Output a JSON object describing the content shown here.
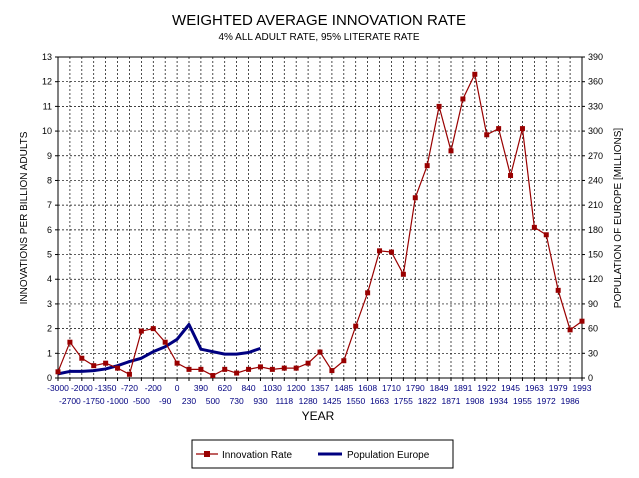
{
  "chart_data": {
    "type": "line",
    "title": "WEIGHTED AVERAGE INNOVATION RATE",
    "subtitle": "4% ALL ADULT RATE, 95% LITERATE RATE",
    "xlabel": "YEAR",
    "ylabel_left": "INNOVATIONS PER BILLION ADULTS",
    "ylabel_right": "POPULATION OF EUROPE [MILLIONS]",
    "ylim_left": [
      0,
      13
    ],
    "ylim_right": [
      0,
      390
    ],
    "yticks_left": [
      "0",
      "1",
      "2",
      "3",
      "4",
      "5",
      "6",
      "7",
      "8",
      "9",
      "10",
      "11",
      "12",
      "13"
    ],
    "yticks_right": [
      "0",
      "30",
      "60",
      "90",
      "120",
      "150",
      "180",
      "210",
      "240",
      "270",
      "300",
      "330",
      "360",
      "390"
    ],
    "categories": [
      "-3000",
      "-2700",
      "-2000",
      "-1750",
      "-1350",
      "-1000",
      "-720",
      "-500",
      "-200",
      "-90",
      "0",
      "230",
      "390",
      "500",
      "620",
      "730",
      "840",
      "930",
      "1030",
      "1118",
      "1200",
      "1280",
      "1357",
      "1425",
      "1485",
      "1550",
      "1608",
      "1663",
      "1710",
      "1755",
      "1790",
      "1822",
      "1849",
      "1871",
      "1891",
      "1908",
      "1922",
      "1934",
      "1945",
      "1955",
      "1963",
      "1972",
      "1979",
      "1986",
      "1993"
    ],
    "series": [
      {
        "name": "Innovation Rate",
        "color": "#990000",
        "values": [
          0.25,
          1.45,
          0.8,
          0.5,
          0.6,
          0.4,
          0.15,
          1.9,
          2.0,
          1.45,
          0.6,
          0.35,
          0.35,
          0.1,
          0.35,
          0.2,
          0.35,
          0.45,
          0.35,
          0.4,
          0.4,
          0.6,
          1.05,
          0.3,
          0.7,
          2.1,
          3.45,
          5.15,
          5.1,
          4.2,
          7.3,
          8.6,
          11.0,
          9.2,
          11.3,
          12.3,
          9.85,
          10.1,
          8.2,
          10.1,
          6.1,
          5.8,
          3.55,
          1.95,
          2.3
        ]
      },
      {
        "name": "Population Europe",
        "color": "#000080",
        "values": [
          5,
          8,
          8,
          9,
          11,
          15,
          20,
          24,
          32,
          38,
          47,
          65,
          35,
          32,
          29,
          29,
          31,
          36,
          null,
          null,
          null,
          null,
          null,
          null,
          null,
          null,
          null,
          null,
          null,
          null,
          null,
          null,
          null,
          null,
          null,
          null,
          null,
          null,
          null,
          null,
          null,
          null,
          null,
          null,
          null
        ]
      }
    ],
    "grid": true,
    "legend": "bottom-center"
  }
}
